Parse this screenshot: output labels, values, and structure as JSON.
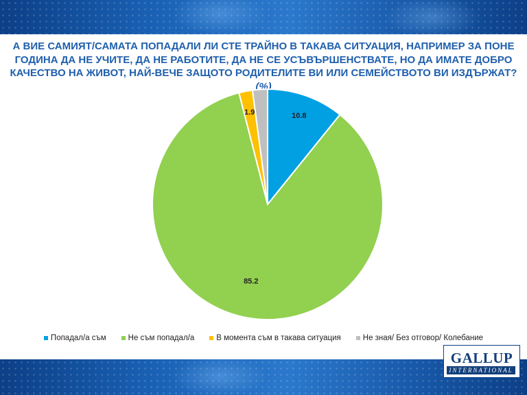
{
  "title": {
    "line1": "А ВИЕ САМИЯТ/САМАТА ПОПАДАЛИ ЛИ СТЕ ТРАЙНО В ТАКАВА СИТУАЦИЯ, НАПРИМЕР ЗА ПОНЕ",
    "line2": "ГОДИНА ДА НЕ УЧИТЕ, ДА НЕ РАБОТИТЕ, ДА НЕ СЕ УСЪВЪРШЕНСТВАТЕ, НО ДА ИМАТЕ ДОБРО",
    "line3": "КАЧЕСТВО НА ЖИВОТ, НАЙ-ВЕЧЕ ЗАЩОТО РОДИТЕЛИТЕ ВИ ИЛИ СЕМЕЙСТВОТО ВИ ИЗДЪРЖАТ?",
    "unit": "(%)"
  },
  "logo": {
    "main": "GALLUP",
    "sub": "INTERNATIONAL"
  },
  "chart_data": {
    "type": "pie",
    "start_angle_deg": 0,
    "direction": "clockwise",
    "slices": [
      {
        "label": "Попадал/а съм",
        "value": 10.8,
        "color": "#00a0e3"
      },
      {
        "label": "Не съм попадал/а",
        "value": 85.2,
        "color": "#92d050"
      },
      {
        "label": "В момента съм в такава ситуация",
        "value": 1.9,
        "color": "#ffc000"
      },
      {
        "label": "Не зная/ Без отговор/ Колебание",
        "value": 2.1,
        "color": "#bfbfbf"
      }
    ],
    "data_labels": [
      "10.8",
      "85.2",
      "1.9",
      ""
    ],
    "legend_position": "bottom"
  }
}
